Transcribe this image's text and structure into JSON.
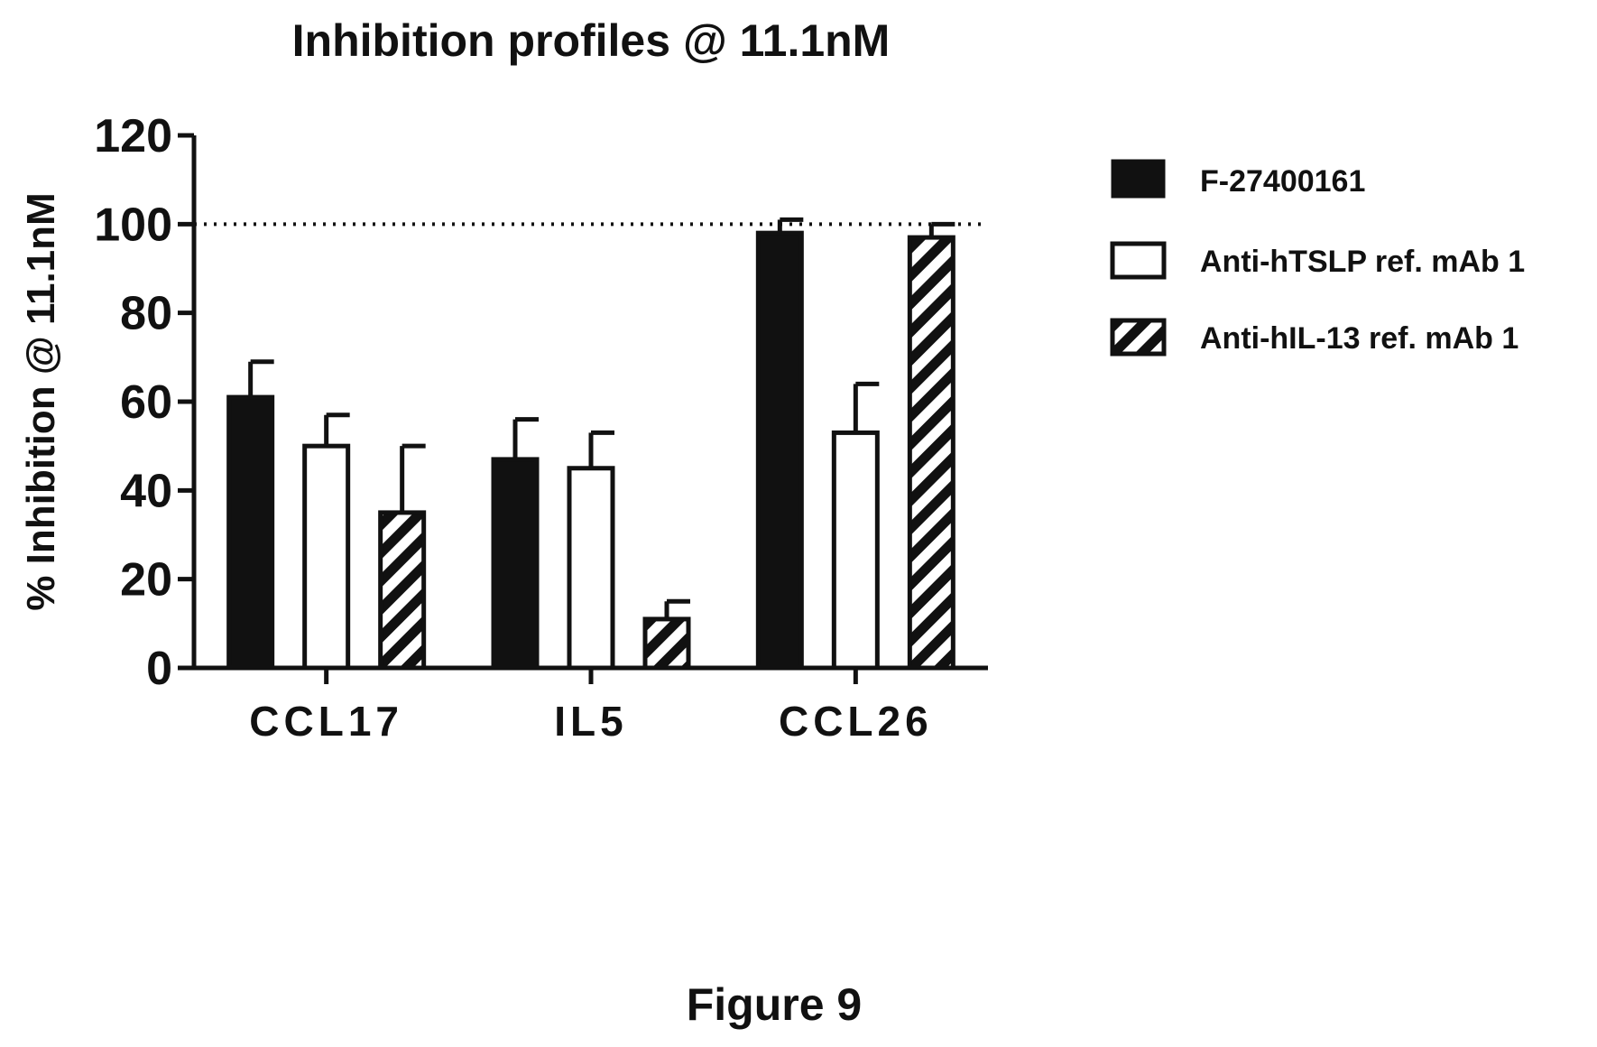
{
  "chart_data": {
    "type": "bar",
    "title": "Inhibition profiles @ 11.1nM",
    "xlabel": "",
    "ylabel": "% Inhibition @ 11.1nM",
    "ylim": [
      0,
      120
    ],
    "yticks": [
      "0",
      "20",
      "40",
      "60",
      "80",
      "100",
      "120"
    ],
    "categories": [
      "CCL17",
      "IL5",
      "CCL26"
    ],
    "series": [
      {
        "name": "F-27400161",
        "fill": "solid",
        "values": [
          61,
          47,
          98
        ],
        "error_top": [
          69,
          56,
          101
        ]
      },
      {
        "name": "Anti-hTSLP ref. mAb 1",
        "fill": "open",
        "values": [
          50,
          45,
          53
        ],
        "error_top": [
          57,
          53,
          64
        ]
      },
      {
        "name": "Anti-hIL-13 ref. mAb 1",
        "fill": "hatched",
        "values": [
          35,
          11,
          97
        ],
        "error_top": [
          50,
          15,
          100
        ]
      }
    ],
    "reference_line": 100,
    "legend_position": "right",
    "grid": false
  },
  "caption": "Figure 9",
  "colors": {
    "ink": "#111111",
    "background": "#ffffff"
  }
}
